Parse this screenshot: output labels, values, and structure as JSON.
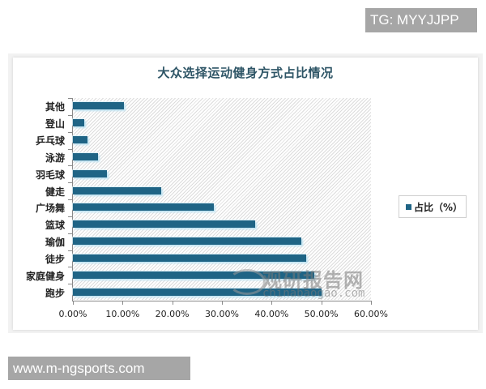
{
  "overlay": {
    "top_tag": "TG: MYYJJPP",
    "bottom_tag": "www.m-ngsports.com"
  },
  "watermark": {
    "cn": "观研报告网",
    "en": "chinabaogao.com"
  },
  "chart_data": {
    "type": "bar",
    "orientation": "horizontal",
    "title": "大众选择运动健身方式占比情况",
    "categories": [
      "其他",
      "登山",
      "乒乓球",
      "泳游",
      "羽毛球",
      "健走",
      "广场舞",
      "篮球",
      "瑜伽",
      "徒步",
      "家庭健身",
      "跑步"
    ],
    "series": [
      {
        "name": "占比（%）",
        "color": "#1f6485",
        "values": [
          10.3,
          2.3,
          3.0,
          5.0,
          6.8,
          17.8,
          28.4,
          36.7,
          45.9,
          47.0,
          48.6,
          50.1
        ]
      }
    ],
    "xlabel": "",
    "ylabel": "",
    "xlim": [
      0,
      60
    ],
    "xticks": [
      "0.00%",
      "10.00%",
      "20.00%",
      "30.00%",
      "40.00%",
      "50.00%",
      "60.00%"
    ],
    "legend": {
      "position": "right",
      "entries": [
        "占比（%）"
      ]
    },
    "grid": false
  }
}
